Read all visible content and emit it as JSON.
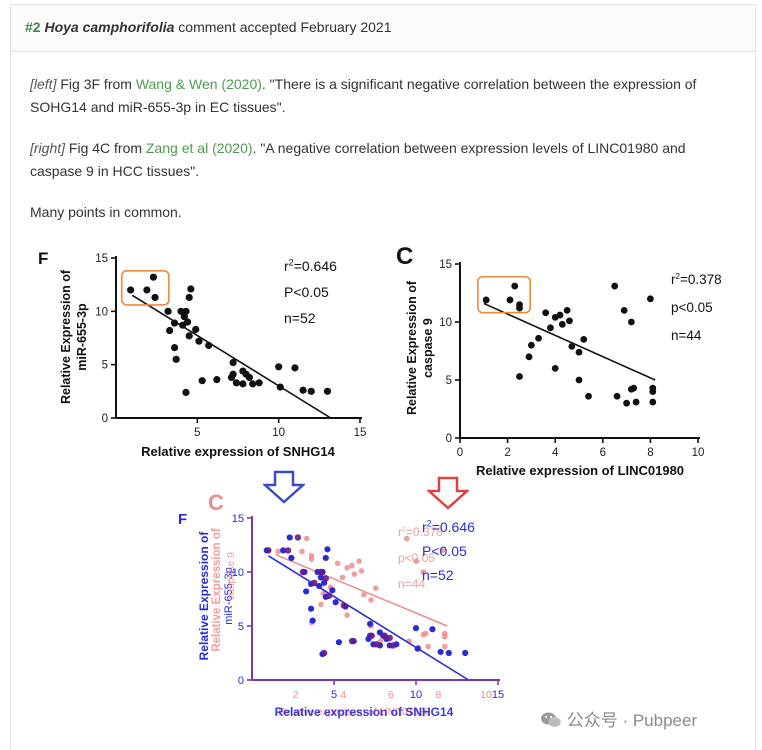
{
  "header": {
    "number": "#2",
    "species": "Hoya camphorifolia",
    "status": "comment accepted February 2021"
  },
  "paragraphs": [
    {
      "tag": "[left]",
      "pre": " Fig 3F from ",
      "link": "Wang & Wen (2020)",
      "post": ". \"There is a significant negative correlation between the expression of SOHG14 and miR-655-3p in EC tissues\"."
    },
    {
      "tag": "[right]",
      "pre": " Fig 4C from ",
      "link": "Zang et al (2020)",
      "post": ". \"A negative correlation between expression levels of LINC01980 and caspase 9 in HCC tissues\"."
    },
    {
      "text": "Many points in common."
    }
  ],
  "colors": {
    "link": "#4f9a4f",
    "number": "#3a8a4a",
    "highlight_box": "#f0883a",
    "arrow_left": "#3a4bc4",
    "arrow_right": "#e04040",
    "overlay_left": "#2b2bd6",
    "overlay_right": "#f08c8c",
    "overlay_common": "#6a1a8a",
    "overlay_axis": "#7a3aa8"
  },
  "chart_data": [
    {
      "type": "scatter",
      "panel_label": "F",
      "xlabel": "Relative expression of SNHG14",
      "ylabel": "Relative Expression of miR-655-3p",
      "xlim": [
        0,
        15
      ],
      "ylim": [
        0,
        15
      ],
      "xticks": [
        "5",
        "10",
        "15"
      ],
      "yticks": [
        "0",
        "5",
        "10",
        "15"
      ],
      "stats": [
        "r²=0.646",
        "P<0.05",
        "n=52"
      ],
      "trend": [
        [
          1.0,
          11.5
        ],
        [
          13.2,
          0
        ]
      ],
      "points": [
        [
          0.9,
          12
        ],
        [
          1.9,
          12
        ],
        [
          2.3,
          13.2
        ],
        [
          2.4,
          11.3
        ],
        [
          3.2,
          10
        ],
        [
          3.3,
          8.2
        ],
        [
          3.6,
          8.9
        ],
        [
          3.6,
          6.6
        ],
        [
          3.7,
          5.5
        ],
        [
          4.0,
          10
        ],
        [
          4.1,
          8.7
        ],
        [
          4.2,
          9.5
        ],
        [
          4.3,
          10
        ],
        [
          4.4,
          9.0
        ],
        [
          4.5,
          7.7
        ],
        [
          4.3,
          2.4
        ],
        [
          4.6,
          12.1
        ],
        [
          4.5,
          11.3
        ],
        [
          4.9,
          8.3
        ],
        [
          5.1,
          7.2
        ],
        [
          5.3,
          3.5
        ],
        [
          5.7,
          6.8
        ],
        [
          6.2,
          3.6
        ],
        [
          7.1,
          3.8
        ],
        [
          7.2,
          5.2
        ],
        [
          7.2,
          4.1
        ],
        [
          7.4,
          3.3
        ],
        [
          7.8,
          4.4
        ],
        [
          7.8,
          3.2
        ],
        [
          8.0,
          4.1
        ],
        [
          8.2,
          3.8
        ],
        [
          8.4,
          3.2
        ],
        [
          8.8,
          3.3
        ],
        [
          10.0,
          4.8
        ],
        [
          10.1,
          2.9
        ],
        [
          11.0,
          4.7
        ],
        [
          11.5,
          2.6
        ],
        [
          12.0,
          2.5
        ],
        [
          13.0,
          2.5
        ]
      ]
    },
    {
      "type": "scatter",
      "panel_label": "C",
      "xlabel": "Relative expression of LINC01980",
      "ylabel": "Relative Expression of caspase 9",
      "xlim": [
        0,
        10
      ],
      "ylim": [
        0,
        15
      ],
      "xticks": [
        "0",
        "2",
        "4",
        "6",
        "8",
        "10"
      ],
      "yticks": [
        "0",
        "5",
        "10",
        "15"
      ],
      "stats": [
        "r²=0.378",
        "p<0.05",
        "n=44"
      ],
      "trend": [
        [
          1.0,
          11.6
        ],
        [
          8.2,
          5.0
        ]
      ],
      "points": [
        [
          1.1,
          11.9
        ],
        [
          2.1,
          11.9
        ],
        [
          2.3,
          13.1
        ],
        [
          2.5,
          11.5
        ],
        [
          2.5,
          11.2
        ],
        [
          2.5,
          5.3
        ],
        [
          2.9,
          7.0
        ],
        [
          3.0,
          8.0
        ],
        [
          3.3,
          8.6
        ],
        [
          3.6,
          10.8
        ],
        [
          3.8,
          9.5
        ],
        [
          4.0,
          6.0
        ],
        [
          4.0,
          10.4
        ],
        [
          4.2,
          10.6
        ],
        [
          4.3,
          9.8
        ],
        [
          4.5,
          11.0
        ],
        [
          4.6,
          10.1
        ],
        [
          4.7,
          7.9
        ],
        [
          5.0,
          5.0
        ],
        [
          5.0,
          7.4
        ],
        [
          5.2,
          8.5
        ],
        [
          5.4,
          3.6
        ],
        [
          6.5,
          13.1
        ],
        [
          6.6,
          3.6
        ],
        [
          6.9,
          11.0
        ],
        [
          7.0,
          3.0
        ],
        [
          7.2,
          4.2
        ],
        [
          7.2,
          10.0
        ],
        [
          7.3,
          4.3
        ],
        [
          7.4,
          3.1
        ],
        [
          8.0,
          12.0
        ],
        [
          8.1,
          4.3
        ],
        [
          8.1,
          4.0
        ],
        [
          8.1,
          3.1
        ]
      ]
    }
  ],
  "overlay": {
    "left": {
      "panel_label": "F",
      "xlabel": "Relative expression of SNHG14",
      "ylabel": "Relative Expression of miR-655-3p",
      "stats": [
        "r²=0.646",
        "P<0.05",
        "n=52"
      ],
      "xticks": [
        "5",
        "10",
        "15"
      ],
      "yticks": [
        "0",
        "5",
        "10",
        "15"
      ]
    },
    "right": {
      "panel_label": "C",
      "xlabel": "Relative expression of LINC01980",
      "ylabel": "Relative Expression of caspase 9",
      "stats": [
        "r²=0.378",
        "p<0.05",
        "n=44"
      ],
      "xticks": [
        "2",
        "4",
        "6",
        "8",
        "10"
      ],
      "yticks": [
        "0",
        "5",
        "10",
        "15"
      ]
    }
  },
  "watermark": {
    "text": "公众号 · Pubpeer"
  }
}
